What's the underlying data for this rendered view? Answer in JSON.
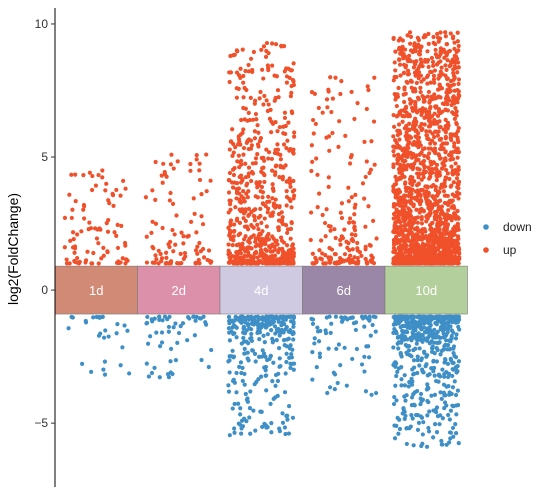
{
  "chart_data": {
    "type": "scatter",
    "title": "",
    "xlabel": "",
    "ylabel": "log2(FoldChange)",
    "ylim": [
      -7.4,
      10.6
    ],
    "yticks": [
      -5,
      0,
      5,
      10
    ],
    "grid": false,
    "legend_position": "right",
    "band_range": [
      -0.9,
      0.9
    ],
    "categories": [
      {
        "label": "1d",
        "color": "#d08a76",
        "up_count": 90,
        "down_count": 28
      },
      {
        "label": "2d",
        "color": "#dc90aa",
        "up_count": 95,
        "down_count": 55
      },
      {
        "label": "4d",
        "color": "#d0c9e2",
        "up_count": 650,
        "down_count": 320
      },
      {
        "label": "6d",
        "color": "#9a86a6",
        "up_count": 180,
        "down_count": 70
      },
      {
        "label": "10d",
        "color": "#b2cf9c",
        "up_count": 1800,
        "down_count": 550
      }
    ],
    "series": [
      {
        "name": "down",
        "color": "#3f8fc7",
        "y_range_by_category": [
          [
            -1.0,
            -3.3
          ],
          [
            -1.0,
            -3.3
          ],
          [
            -1.0,
            -5.5
          ],
          [
            -1.0,
            -4.0
          ],
          [
            -1.0,
            -5.9
          ]
        ]
      },
      {
        "name": "up",
        "color": "#f0502a",
        "y_range_by_category": [
          [
            1.0,
            4.5
          ],
          [
            1.0,
            5.1
          ],
          [
            1.0,
            9.3
          ],
          [
            1.0,
            8.0
          ],
          [
            1.0,
            9.7
          ]
        ]
      }
    ]
  }
}
